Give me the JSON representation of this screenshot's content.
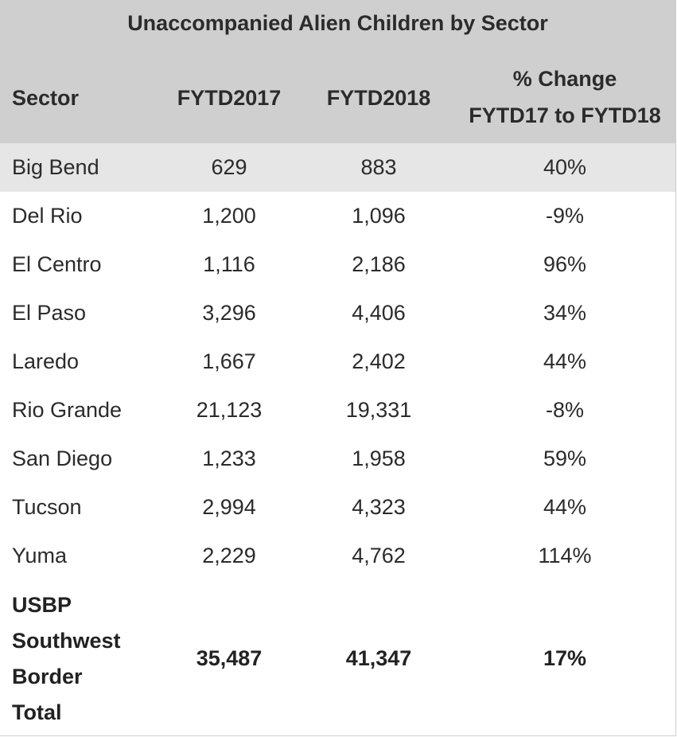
{
  "table": {
    "title": "Unaccompanied Alien Children by Sector",
    "headers": {
      "sector": "Sector",
      "fy17": "FYTD2017",
      "fy18": "FYTD2018",
      "change_line1": "% Change",
      "change_line2": "FYTD17 to FYTD18"
    },
    "rows": [
      {
        "sector": "Big Bend",
        "fy17": "629",
        "fy18": "883",
        "change": "40%"
      },
      {
        "sector": "Del Rio",
        "fy17": "1,200",
        "fy18": "1,096",
        "change": "-9%"
      },
      {
        "sector": "El Centro",
        "fy17": "1,116",
        "fy18": "2,186",
        "change": "96%"
      },
      {
        "sector": "El Paso",
        "fy17": "3,296",
        "fy18": "4,406",
        "change": "34%"
      },
      {
        "sector": "Laredo",
        "fy17": "1,667",
        "fy18": "2,402",
        "change": "44%"
      },
      {
        "sector": "Rio Grande",
        "fy17": "21,123",
        "fy18": "19,331",
        "change": "-8%"
      },
      {
        "sector": "San Diego",
        "fy17": "1,233",
        "fy18": "1,958",
        "change": "59%"
      },
      {
        "sector": "Tucson",
        "fy17": "2,994",
        "fy18": "4,323",
        "change": "44%"
      },
      {
        "sector": "Yuma",
        "fy17": "2,229",
        "fy18": "4,762",
        "change": "114%"
      }
    ],
    "total": {
      "sector_lines": [
        "USBP",
        "Southwest",
        "Border",
        "Total"
      ],
      "fy17": "35,487",
      "fy18": "41,347",
      "change": "17%"
    }
  },
  "colors": {
    "header_bg": "#cfcfcf",
    "shaded_row_bg": "#e6e6e6",
    "text": "#2b2b2b"
  }
}
